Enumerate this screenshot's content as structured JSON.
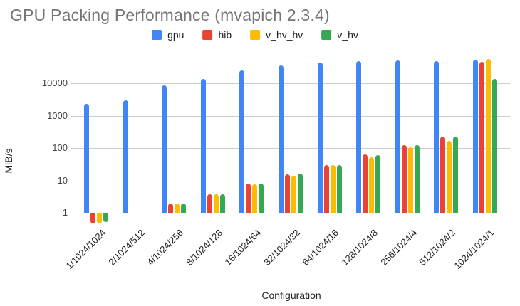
{
  "title": "GPU Packing Performance (mvapich 2.3.4)",
  "colors": {
    "title_text": "#757575",
    "axis_text": "#222222",
    "tick_text": "#444444",
    "gridline": "#cccccc",
    "baseline": "#9e9e9e",
    "background": "#ffffff"
  },
  "chart_data": {
    "type": "bar",
    "title": "GPU Packing Performance (mvapich 2.3.4)",
    "xlabel": "Configuration",
    "ylabel": "MiB/s",
    "y_scale": "log",
    "y_ticks": [
      1,
      10,
      100,
      1000,
      10000
    ],
    "ylim": [
      0.45,
      80000
    ],
    "grid": true,
    "legend_position": "top",
    "categories": [
      "1/1024/1024",
      "2/1024/512",
      "4/1024/256",
      "8/1024/128",
      "16/1024/64",
      "32/1024/32",
      "64/1024/16",
      "128/1024/8",
      "256/1024/4",
      "512/1024/2",
      "1024/1024/1"
    ],
    "series": [
      {
        "name": "gpu",
        "color": "#4285F4",
        "values": [
          2300,
          2900,
          8500,
          13500,
          25000,
          36000,
          43000,
          47000,
          50000,
          47000,
          53000
        ]
      },
      {
        "name": "hib",
        "color": "#EA4335",
        "values": [
          0.5,
          null,
          1.9,
          3.8,
          7.8,
          15.5,
          30,
          62,
          120,
          230,
          46000
        ]
      },
      {
        "name": "v_hv_hv",
        "color": "#FBBC04",
        "values": [
          0.5,
          null,
          1.9,
          3.7,
          7.6,
          14,
          29,
          52,
          105,
          170,
          55000
        ]
      },
      {
        "name": "v_hv",
        "color": "#34A853",
        "values": [
          0.55,
          null,
          1.9,
          3.8,
          8,
          16,
          30,
          60,
          120,
          220,
          13500
        ]
      }
    ]
  }
}
